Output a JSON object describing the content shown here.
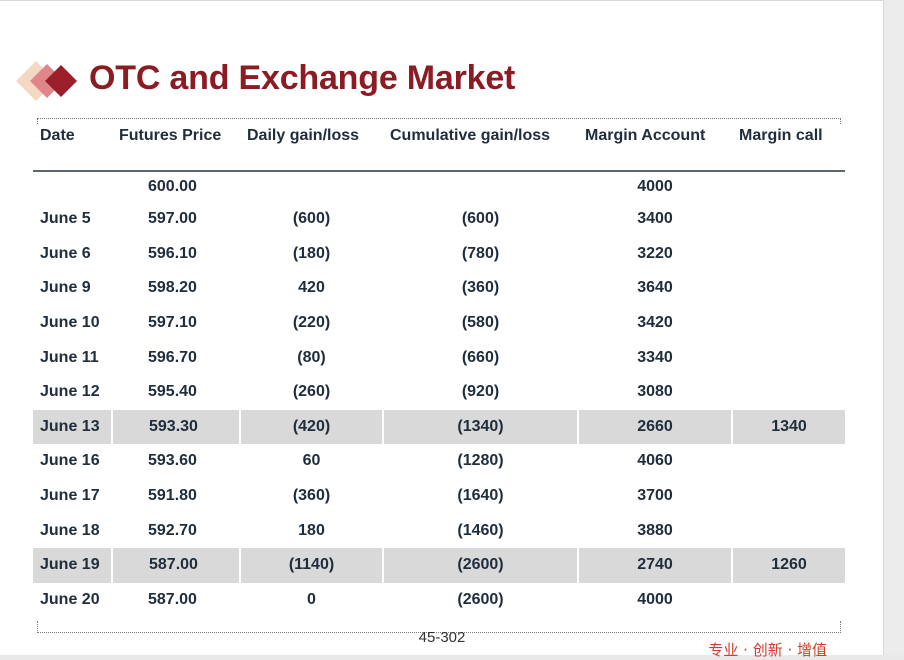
{
  "slide": {
    "title": "OTC and Exchange Market",
    "page_number": "45-302",
    "footer_brand": "专业 · 创新 · 增值"
  },
  "table": {
    "headers": [
      "Date",
      "Futures Price",
      "Daily gain/loss",
      "Cumulative gain/loss",
      "Margin Account",
      "Margin call"
    ],
    "rows": [
      {
        "date": "",
        "futures_price": "600.00",
        "daily": "",
        "cumulative": "",
        "margin_account": "4000",
        "margin_call": "",
        "highlight": false
      },
      {
        "date": "June 5",
        "futures_price": "597.00",
        "daily": "(600)",
        "cumulative": "(600)",
        "margin_account": "3400",
        "margin_call": "",
        "highlight": false
      },
      {
        "date": "June 6",
        "futures_price": "596.10",
        "daily": "(180)",
        "cumulative": "(780)",
        "margin_account": "3220",
        "margin_call": "",
        "highlight": false
      },
      {
        "date": "June 9",
        "futures_price": "598.20",
        "daily": "420",
        "cumulative": "(360)",
        "margin_account": "3640",
        "margin_call": "",
        "highlight": false
      },
      {
        "date": "June 10",
        "futures_price": "597.10",
        "daily": "(220)",
        "cumulative": "(580)",
        "margin_account": "3420",
        "margin_call": "",
        "highlight": false
      },
      {
        "date": "June 11",
        "futures_price": "596.70",
        "daily": "(80)",
        "cumulative": "(660)",
        "margin_account": "3340",
        "margin_call": "",
        "highlight": false
      },
      {
        "date": "June 12",
        "futures_price": "595.40",
        "daily": "(260)",
        "cumulative": "(920)",
        "margin_account": "3080",
        "margin_call": "",
        "highlight": false
      },
      {
        "date": "June 13",
        "futures_price": "593.30",
        "daily": "(420)",
        "cumulative": "(1340)",
        "margin_account": "2660",
        "margin_call": "1340",
        "highlight": true
      },
      {
        "date": "June 16",
        "futures_price": "593.60",
        "daily": "60",
        "cumulative": "(1280)",
        "margin_account": "4060",
        "margin_call": "",
        "highlight": false
      },
      {
        "date": "June 17",
        "futures_price": "591.80",
        "daily": "(360)",
        "cumulative": "(1640)",
        "margin_account": "3700",
        "margin_call": "",
        "highlight": false
      },
      {
        "date": "June 18",
        "futures_price": "592.70",
        "daily": "180",
        "cumulative": "(1460)",
        "margin_account": "3880",
        "margin_call": "",
        "highlight": false
      },
      {
        "date": "June 19",
        "futures_price": "587.00",
        "daily": "(1140)",
        "cumulative": "(2600)",
        "margin_account": "2740",
        "margin_call": "1260",
        "highlight": true
      },
      {
        "date": "June 20",
        "futures_price": "587.00",
        "daily": "0",
        "cumulative": "(2600)",
        "margin_account": "4000",
        "margin_call": "",
        "highlight": false
      }
    ]
  },
  "colors": {
    "title": "#8b1c24",
    "text": "#1f2d3d",
    "highlight_row": "#d9d9d9",
    "brand_footer": "#d23b2b",
    "logo_light": "#f3d9c4",
    "logo_mid": "#e0868a",
    "logo_dark": "#9b1f2a"
  },
  "icons": {
    "logo": "stacked-diamonds-icon"
  }
}
